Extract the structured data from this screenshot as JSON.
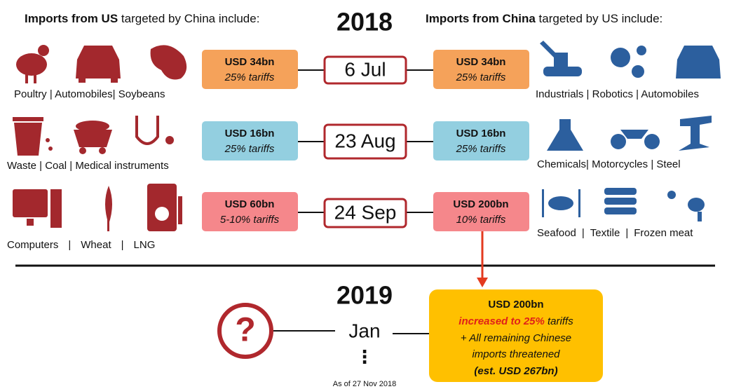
{
  "header": {
    "left_bold": "Imports from US",
    "left_rest": "targeted by China include:",
    "year": "2018",
    "right_bold": "Imports from China",
    "right_rest": "targeted by US include:"
  },
  "separator": "|",
  "rows": [
    {
      "left_items": [
        "Poultry",
        "Automobiles",
        "Soybeans"
      ],
      "china_box": {
        "amount": "USD 34bn",
        "rate": "25% tariffs"
      },
      "date": "6 Jul",
      "us_box": {
        "amount": "USD 34bn",
        "rate": "25% tariffs"
      },
      "right_items": [
        "Industrials",
        "Robotics",
        "Automobiles"
      ]
    },
    {
      "left_items": [
        "Waste",
        "Coal",
        "Medical instruments"
      ],
      "china_box": {
        "amount": "USD 16bn",
        "rate": "25% tariffs"
      },
      "date": "23 Aug",
      "us_box": {
        "amount": "USD 16bn",
        "rate": "25% tariffs"
      },
      "right_items": [
        "Chemicals",
        "Motorcycles",
        "Steel"
      ]
    },
    {
      "left_items": [
        "Computers",
        "Wheat",
        "LNG"
      ],
      "china_box": {
        "amount": "USD 60bn",
        "rate": "5-10% tariffs"
      },
      "date": "24 Sep",
      "us_box": {
        "amount": "USD 200bn",
        "rate": "10% tariffs"
      },
      "right_items": [
        "Seafood",
        "Textile",
        "Frozen meat"
      ]
    }
  ],
  "future": {
    "year": "2019",
    "question": "?",
    "date": "Jan",
    "ellipsis": "⋮",
    "box": {
      "amount": "USD 200bn",
      "increase": "increased to 25%",
      "increase_rest": "tariffs",
      "line2": "+ All remaining Chinese",
      "line3": "imports threatened",
      "line4": "(est. USD 267bn)"
    }
  },
  "footnote": "As of 27 Nov 2018"
}
